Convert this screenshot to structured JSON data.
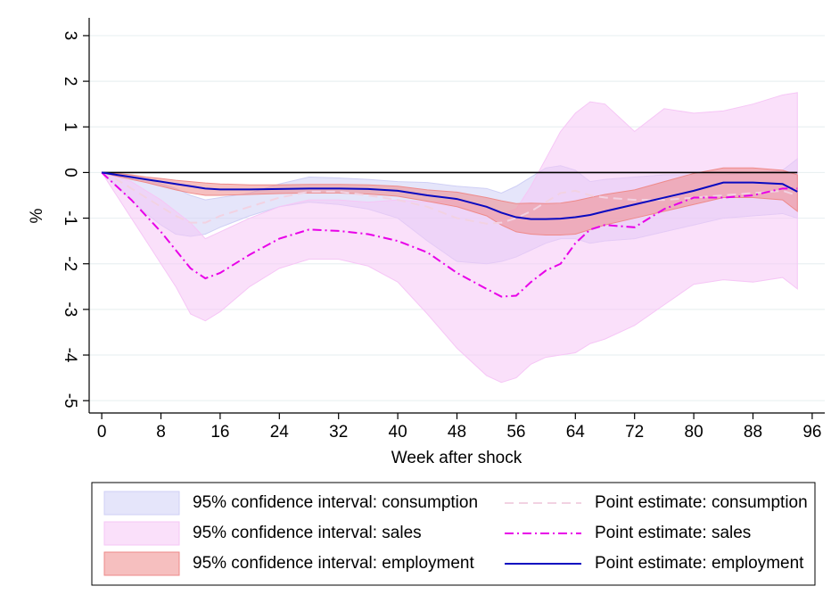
{
  "chart_data": {
    "type": "line",
    "xlabel": "Week after shock",
    "ylabel": "%",
    "x": [
      0,
      2,
      4,
      6,
      8,
      10,
      12,
      14,
      16,
      20,
      24,
      28,
      32,
      36,
      40,
      44,
      48,
      52,
      54,
      56,
      58,
      60,
      62,
      64,
      66,
      68,
      72,
      76,
      80,
      84,
      88,
      92,
      94
    ],
    "xlim": [
      -1.7,
      97.7
    ],
    "xticks": [
      0,
      8,
      16,
      24,
      32,
      40,
      48,
      56,
      64,
      72,
      80,
      88,
      96
    ],
    "ylim": [
      -5.27,
      3.39
    ],
    "yticks": [
      -5,
      -4,
      -3,
      -2,
      -1,
      0,
      1,
      2,
      3
    ],
    "grid": true,
    "zero_line": true,
    "series": [
      {
        "name": "95% confidence interval: consumption",
        "type": "band",
        "color": "#cfcff5",
        "lower": [
          0,
          -0.3,
          -0.6,
          -0.9,
          -1.15,
          -1.35,
          -1.4,
          -1.35,
          -1.2,
          -0.95,
          -0.75,
          -0.65,
          -0.7,
          -0.8,
          -1.0,
          -1.5,
          -1.95,
          -2.0,
          -1.95,
          -1.85,
          -1.7,
          -1.55,
          -1.45,
          -1.45,
          -1.55,
          -1.5,
          -1.45,
          -1.3,
          -1.15,
          -1.0,
          -0.95,
          -0.9,
          -1.0
        ],
        "upper": [
          0,
          -0.02,
          -0.08,
          -0.15,
          -0.25,
          -0.35,
          -0.5,
          -0.6,
          -0.55,
          -0.45,
          -0.25,
          -0.1,
          -0.12,
          -0.15,
          -0.2,
          -0.22,
          -0.3,
          -0.35,
          -0.45,
          -0.3,
          -0.1,
          0.1,
          0.15,
          0.05,
          -0.2,
          -0.15,
          -0.1,
          -0.05,
          -0.05,
          -0.05,
          0.0,
          0.05,
          0.3
        ]
      },
      {
        "name": "95% confidence interval: sales",
        "type": "band",
        "color": "#f6c6f6",
        "lower": [
          0,
          -0.5,
          -1.0,
          -1.5,
          -2.0,
          -2.5,
          -3.1,
          -3.25,
          -3.05,
          -2.5,
          -2.1,
          -1.9,
          -1.9,
          -2.05,
          -2.4,
          -3.1,
          -3.85,
          -4.45,
          -4.6,
          -4.5,
          -4.2,
          -4.05,
          -4.0,
          -3.95,
          -3.75,
          -3.65,
          -3.35,
          -2.9,
          -2.45,
          -2.35,
          -2.4,
          -2.3,
          -2.55
        ],
        "upper": [
          0,
          -0.1,
          -0.2,
          -0.4,
          -0.6,
          -0.85,
          -1.1,
          -1.45,
          -1.3,
          -1.0,
          -0.75,
          -0.6,
          -0.6,
          -0.65,
          -0.6,
          -0.65,
          -0.6,
          -0.75,
          -0.9,
          -0.8,
          -0.3,
          0.3,
          0.9,
          1.3,
          1.55,
          1.5,
          0.9,
          1.4,
          1.3,
          1.35,
          1.5,
          1.7,
          1.75
        ]
      },
      {
        "name": "95% confidence interval: employment",
        "type": "band",
        "color": "#ee8a8a",
        "lower": [
          0,
          -0.08,
          -0.15,
          -0.22,
          -0.3,
          -0.38,
          -0.45,
          -0.5,
          -0.5,
          -0.48,
          -0.46,
          -0.45,
          -0.45,
          -0.47,
          -0.52,
          -0.63,
          -0.75,
          -0.95,
          -1.15,
          -1.3,
          -1.35,
          -1.37,
          -1.37,
          -1.35,
          -1.25,
          -1.15,
          -1.0,
          -0.85,
          -0.7,
          -0.55,
          -0.55,
          -0.6,
          -0.85
        ],
        "upper": [
          0,
          -0.02,
          -0.05,
          -0.1,
          -0.13,
          -0.17,
          -0.2,
          -0.23,
          -0.25,
          -0.27,
          -0.27,
          -0.26,
          -0.26,
          -0.27,
          -0.3,
          -0.38,
          -0.43,
          -0.55,
          -0.62,
          -0.68,
          -0.67,
          -0.68,
          -0.67,
          -0.62,
          -0.55,
          -0.48,
          -0.38,
          -0.2,
          -0.02,
          0.1,
          0.1,
          0.05,
          -0.05
        ]
      },
      {
        "name": "Point estimate: consumption",
        "type": "line",
        "color": "#f2d2e2",
        "dash": "10 6",
        "values": [
          0,
          -0.15,
          -0.35,
          -0.55,
          -0.75,
          -0.95,
          -1.1,
          -1.1,
          -0.95,
          -0.75,
          -0.55,
          -0.42,
          -0.42,
          -0.5,
          -0.6,
          -0.75,
          -1.0,
          -1.12,
          -1.1,
          -1.0,
          -0.85,
          -0.65,
          -0.45,
          -0.4,
          -0.5,
          -0.55,
          -0.6,
          -0.6,
          -0.55,
          -0.5,
          -0.45,
          -0.4,
          -0.5
        ]
      },
      {
        "name": "Point estimate: sales",
        "type": "line",
        "color": "#e800e8",
        "dash": "10 4 2 4",
        "values": [
          0,
          -0.3,
          -0.6,
          -0.95,
          -1.3,
          -1.7,
          -2.1,
          -2.32,
          -2.2,
          -1.8,
          -1.45,
          -1.25,
          -1.28,
          -1.35,
          -1.5,
          -1.75,
          -2.2,
          -2.55,
          -2.72,
          -2.7,
          -2.4,
          -2.15,
          -2.0,
          -1.55,
          -1.25,
          -1.15,
          -1.2,
          -0.8,
          -0.55,
          -0.55,
          -0.5,
          -0.35,
          -0.35
        ]
      },
      {
        "name": "Point estimate: employment",
        "type": "line",
        "color": "#0a0ac0",
        "dash": "",
        "values": [
          0,
          -0.05,
          -0.1,
          -0.15,
          -0.2,
          -0.25,
          -0.3,
          -0.35,
          -0.37,
          -0.37,
          -0.36,
          -0.35,
          -0.35,
          -0.36,
          -0.4,
          -0.5,
          -0.58,
          -0.75,
          -0.88,
          -0.98,
          -1.02,
          -1.02,
          -1.01,
          -0.98,
          -0.93,
          -0.85,
          -0.7,
          -0.55,
          -0.4,
          -0.22,
          -0.22,
          -0.25,
          -0.42
        ]
      }
    ]
  }
}
